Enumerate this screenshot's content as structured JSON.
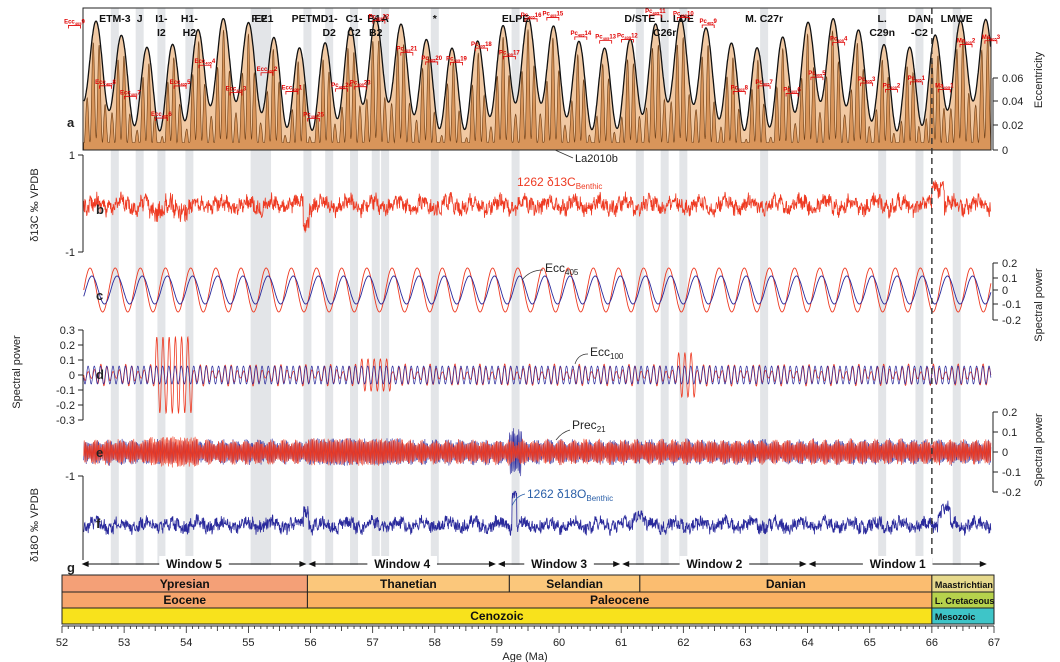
{
  "chart_data": {
    "type": "line",
    "xlabel": "Age (Ma)",
    "xlim": [
      52,
      67
    ],
    "x_ticks": [
      "52",
      "53",
      "54",
      "55",
      "56",
      "57",
      "58",
      "59",
      "60",
      "61",
      "62",
      "63",
      "64",
      "65",
      "66",
      "67"
    ],
    "panels": [
      {
        "label": "a",
        "ylabel": "Eccentricity",
        "yticks": [
          "0",
          "0.02",
          "0.04",
          "0.06"
        ],
        "annotation": "La2010b",
        "ylim": [
          0,
          0.07
        ]
      },
      {
        "label": "b",
        "ylabel": "δ13C ‰ VPDB",
        "yticks": [
          "1",
          "-1"
        ],
        "annotation": "1262 δ13C",
        "annotation_sub": "Benthic",
        "ylim": [
          -1.5,
          1
        ]
      },
      {
        "label": "c",
        "ylabel": "Spectral power",
        "yticks": [
          "0.2",
          "0.1",
          "0",
          "-0.1",
          "-0.2"
        ],
        "annotation": "Ecc",
        "annotation_sub": "405"
      },
      {
        "label": "d",
        "ylabel": "Spectral power",
        "yticks": [
          "0.3",
          "0.2",
          "0.1",
          "0",
          "-0.1",
          "-0.2",
          "-0.3"
        ],
        "annotation": "Ecc",
        "annotation_sub": "100"
      },
      {
        "label": "e",
        "ylabel": "Spectral power",
        "yticks": [
          "0.2",
          "0.1",
          "0",
          "-0.1",
          "-0.2"
        ],
        "annotation": "Prec",
        "annotation_sub": "21"
      },
      {
        "label": "f",
        "ylabel": "δ18O ‰ VPDB",
        "yticks": [
          "-1"
        ],
        "annotation": "1262 δ18O",
        "annotation_sub": "Benthic"
      },
      {
        "label": "g"
      }
    ],
    "events": [
      {
        "label": "ETM-3",
        "age": 52.85
      },
      {
        "label": "J",
        "age": 53.25
      },
      {
        "label": "I1-",
        "age": 53.6
      },
      {
        "label": "I2",
        "age": 53.6
      },
      {
        "label": "H1-",
        "age": 54.05
      },
      {
        "label": "H2",
        "age": 54.05
      },
      {
        "label": "E2",
        "age": 55.2
      },
      {
        "label": "F",
        "age": 55.1
      },
      {
        "label": "E1",
        "age": 55.3
      },
      {
        "label": "PETM",
        "age": 55.93
      },
      {
        "label": "D1-",
        "age": 56.3
      },
      {
        "label": "D2",
        "age": 56.3
      },
      {
        "label": "C1-",
        "age": 56.7
      },
      {
        "label": "C2",
        "age": 56.7
      },
      {
        "label": "B1-",
        "age": 57.05
      },
      {
        "label": "B2",
        "age": 57.05
      },
      {
        "label": "A",
        "age": 57.2
      },
      {
        "label": "*",
        "age": 58.0
      },
      {
        "label": "ELPE",
        "age": 59.3
      },
      {
        "label": "D/STE",
        "age": 61.3
      },
      {
        "label": "L.",
        "age": 61.7
      },
      {
        "label": "C26r",
        "age": 61.7
      },
      {
        "label": "LDE",
        "age": 62.0
      },
      {
        "label": "M. C27r",
        "age": 63.3
      },
      {
        "label": "L.",
        "age": 65.2
      },
      {
        "label": "C29n",
        "age": 65.2
      },
      {
        "label": "DAN",
        "age": 65.8
      },
      {
        "label": "-C2",
        "age": 65.8
      },
      {
        "label": "LMWE",
        "age": 66.4
      }
    ],
    "cycles": [
      {
        "label": "Ecc",
        "sub": "405",
        "num": "9",
        "age": 52.2
      },
      {
        "label": "Ecc",
        "sub": "405",
        "num": "8",
        "age": 52.7
      },
      {
        "label": "Ecc",
        "sub": "405",
        "num": "7",
        "age": 53.1
      },
      {
        "label": "Ecc",
        "sub": "405",
        "num": "6",
        "age": 53.6
      },
      {
        "label": "Ecc",
        "sub": "405",
        "num": "5",
        "age": 53.9
      },
      {
        "label": "Ecc",
        "sub": "405",
        "num": "4",
        "age": 54.3
      },
      {
        "label": "Ecc",
        "sub": "405",
        "num": "3",
        "age": 54.8
      },
      {
        "label": "Ecc",
        "sub": "405",
        "num": "2",
        "age": 55.3
      },
      {
        "label": "Ecc",
        "sub": "405",
        "num": "1",
        "age": 55.7
      },
      {
        "label": "Pc",
        "sub": "405",
        "num": "25",
        "age": 56.05
      },
      {
        "label": "Pc",
        "sub": "405",
        "num": "24",
        "age": 56.5
      },
      {
        "label": "Pc",
        "sub": "405",
        "num": "23",
        "age": 56.8
      },
      {
        "label": "Pc",
        "sub": "405",
        "num": "22",
        "age": 57.1
      },
      {
        "label": "Pc",
        "sub": "405",
        "num": "21",
        "age": 57.55
      },
      {
        "label": "Pc",
        "sub": "405",
        "num": "20",
        "age": 57.95
      },
      {
        "label": "Pc",
        "sub": "405",
        "num": "19",
        "age": 58.35
      },
      {
        "label": "Pc",
        "sub": "405",
        "num": "18",
        "age": 58.75
      },
      {
        "label": "Pc",
        "sub": "405",
        "num": "17",
        "age": 59.2
      },
      {
        "label": "Pc",
        "sub": "405",
        "num": "16",
        "age": 59.55
      },
      {
        "label": "Pc",
        "sub": "405",
        "num": "15",
        "age": 59.9
      },
      {
        "label": "Pc",
        "sub": "405",
        "num": "14",
        "age": 60.35
      },
      {
        "label": "Pc",
        "sub": "405",
        "num": "13",
        "age": 60.75
      },
      {
        "label": "Pc",
        "sub": "405",
        "num": "12",
        "age": 61.1
      },
      {
        "label": "Pc",
        "sub": "405",
        "num": "11",
        "age": 61.55
      },
      {
        "label": "Pc",
        "sub": "405",
        "num": "10",
        "age": 62.0
      },
      {
        "label": "Pc",
        "sub": "405",
        "num": "9",
        "age": 62.4
      },
      {
        "label": "Pc",
        "sub": "405",
        "num": "8",
        "age": 62.9
      },
      {
        "label": "Pc",
        "sub": "405",
        "num": "7",
        "age": 63.3
      },
      {
        "label": "Pc",
        "sub": "405",
        "num": "6",
        "age": 63.75
      },
      {
        "label": "Pc",
        "sub": "405",
        "num": "5",
        "age": 64.15
      },
      {
        "label": "Pc",
        "sub": "405",
        "num": "4",
        "age": 64.5
      },
      {
        "label": "Pc",
        "sub": "405",
        "num": "3",
        "age": 64.95
      },
      {
        "label": "Pc",
        "sub": "405",
        "num": "2",
        "age": 65.35
      },
      {
        "label": "Pc",
        "sub": "405",
        "num": "1",
        "age": 65.75
      },
      {
        "label": "Ma",
        "sub": "405",
        "num": "1",
        "age": 66.2
      },
      {
        "label": "Ma",
        "sub": "405",
        "num": "2",
        "age": 66.55
      },
      {
        "label": "Ma",
        "sub": "405",
        "num": "3",
        "age": 66.95
      }
    ],
    "gray_bands": [
      52.85,
      53.25,
      53.6,
      54.05,
      55.1,
      55.2,
      55.3,
      55.95,
      56.3,
      56.7,
      57.05,
      57.2,
      58.0,
      59.3,
      61.3,
      61.7,
      62.0,
      63.3,
      65.2,
      65.8,
      66.4
    ],
    "kpg_boundary": 66.0,
    "windows": [
      {
        "label": "Window 5",
        "from": 52.3,
        "to": 55.95
      },
      {
        "label": "Window 4",
        "from": 55.95,
        "to": 59.0
      },
      {
        "label": "Window 3",
        "from": 59.0,
        "to": 61.0
      },
      {
        "label": "Window 2",
        "from": 61.0,
        "to": 64.0
      },
      {
        "label": "Window 1",
        "from": 64.0,
        "to": 66.9
      }
    ],
    "stages": [
      {
        "label": "Ypresian",
        "from": 52,
        "to": 55.95,
        "color": "#f4a077"
      },
      {
        "label": "Thanetian",
        "from": 55.95,
        "to": 59.2,
        "color": "#fbc77b"
      },
      {
        "label": "Selandian",
        "from": 59.2,
        "to": 61.3,
        "color": "#fbc77b"
      },
      {
        "label": "Danian",
        "from": 61.3,
        "to": 66.0,
        "color": "#fbbd70"
      },
      {
        "label": "Maastrichtian",
        "from": 66.0,
        "to": 67.1,
        "color": "#e6d98c"
      }
    ],
    "epochs": [
      {
        "label": "Eocene",
        "from": 52,
        "to": 55.95,
        "color": "#f8a56c"
      },
      {
        "label": "Paleocene",
        "from": 55.95,
        "to": 66.0,
        "color": "#fbb163"
      },
      {
        "label": "L. Cretaceous",
        "from": 66.0,
        "to": 67.1,
        "color": "#b6d24c"
      }
    ],
    "eras": [
      {
        "label": "Cenozoic",
        "from": 52,
        "to": 66.0,
        "color": "#f8e21c"
      },
      {
        "label": "Mesozoic",
        "from": 66.0,
        "to": 67.1,
        "color": "#3ec5c8"
      }
    ]
  },
  "colors": {
    "red": "#ee3a22",
    "blue": "#2a2a9c",
    "ecc_fill": "#d9955a",
    "ecc_env": "#f1c9a3",
    "band": "#e3e5e8",
    "cycle": "#e00000"
  }
}
